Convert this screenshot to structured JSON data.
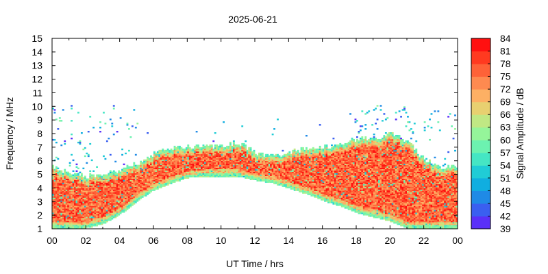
{
  "chart_data": {
    "type": "heatmap",
    "title": "2025-06-21",
    "xlabel": "UT Time / hrs",
    "ylabel": "Frequency / MHz",
    "colorbar_label": "Signal Amplitude / dB",
    "xlim": [
      0,
      24
    ],
    "ylim": [
      1,
      15
    ],
    "x_ticks": [
      "00",
      "02",
      "04",
      "06",
      "08",
      "10",
      "12",
      "14",
      "16",
      "18",
      "20",
      "22",
      "00"
    ],
    "y_ticks": [
      "1",
      "2",
      "3",
      "4",
      "5",
      "6",
      "7",
      "8",
      "9",
      "10",
      "11",
      "12",
      "13",
      "14",
      "15"
    ],
    "colorbar_ticks": [
      "39",
      "42",
      "45",
      "48",
      "51",
      "54",
      "57",
      "60",
      "63",
      "66",
      "69",
      "72",
      "75",
      "78",
      "81",
      "84"
    ],
    "color_range": [
      39,
      84
    ],
    "colorbar_colors": [
      "#8000ff",
      "#5a30f8",
      "#3a5ff0",
      "#1f8ae6",
      "#10aee0",
      "#20ccd6",
      "#45e6c4",
      "#6cf2b0",
      "#95f59a",
      "#c0e884",
      "#e8d070",
      "#fdb064",
      "#fe8a50",
      "#fe6238",
      "#ff3a20",
      "#ff1010"
    ],
    "grid": false,
    "legend": "colorbar-right",
    "median_upper_frequency_mhz": {
      "times": [
        0,
        1,
        2,
        3,
        4,
        5,
        6,
        7,
        8,
        9,
        10,
        11,
        12,
        13,
        14,
        15,
        16,
        17,
        18,
        19,
        20,
        21,
        22,
        23,
        24
      ],
      "values": [
        5.5,
        5.0,
        4.8,
        5.0,
        5.3,
        5.8,
        6.5,
        6.9,
        7.0,
        7.0,
        7.0,
        7.3,
        6.5,
        6.3,
        6.6,
        6.9,
        7.0,
        7.2,
        7.6,
        7.6,
        8.0,
        7.4,
        6.0,
        5.5,
        5.6
      ]
    },
    "median_lower_frequency_mhz": {
      "times": [
        0,
        1,
        2,
        3,
        4,
        5,
        6,
        7,
        8,
        9,
        10,
        11,
        12,
        13,
        14,
        15,
        16,
        17,
        18,
        19,
        20,
        21,
        22,
        23,
        24
      ],
      "values": [
        1.0,
        1.0,
        1.0,
        1.3,
        2.0,
        3.0,
        3.8,
        4.3,
        4.7,
        4.8,
        4.8,
        4.8,
        4.5,
        4.3,
        3.9,
        3.5,
        3.0,
        2.6,
        2.1,
        1.8,
        1.5,
        1.0,
        1.0,
        1.0,
        1.0
      ]
    }
  }
}
